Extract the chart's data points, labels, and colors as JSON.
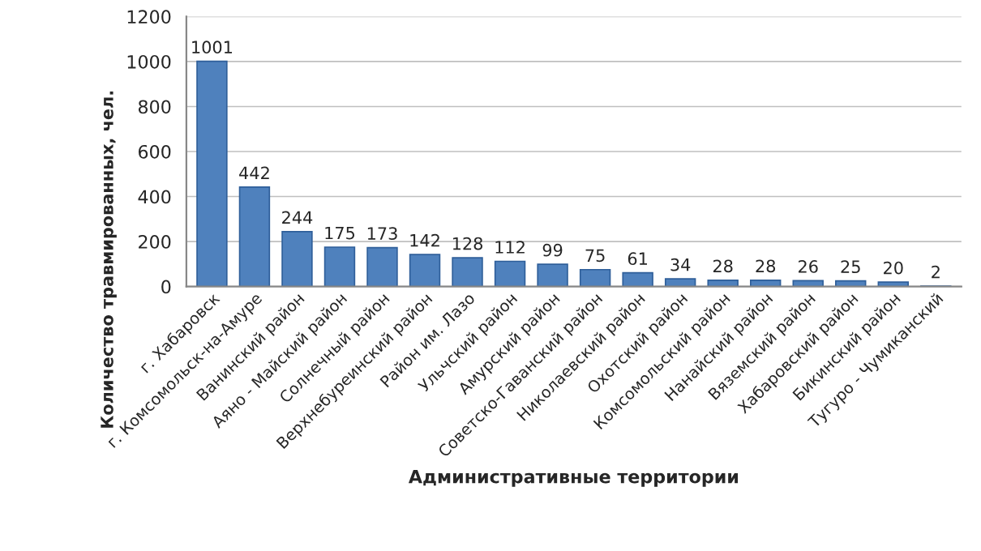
{
  "chart_data": {
    "type": "bar",
    "xlabel": "Административные территории",
    "ylabel": "Количество травмированных, чел.",
    "categories": [
      "г. Хабаровск",
      "г. Комсомольск-на-Амуре",
      "Ванинский район",
      "Аяно - Майский район",
      "Солнечный район",
      "Верхнебуреинский район",
      "Район им. Лазо",
      "Ульчский район",
      "Амурский район",
      "Советско-Гаванский район",
      "Николаевский район",
      "Охотский район",
      "Комсомольский район",
      "Нанайский район",
      "Вяземский район",
      "Хабаровский район",
      "Бикинский район",
      "Тугуро - Чумиканский"
    ],
    "values": [
      1001,
      442,
      244,
      175,
      173,
      142,
      128,
      112,
      99,
      75,
      61,
      34,
      28,
      28,
      26,
      25,
      20,
      2
    ],
    "color": "#4f81bd",
    "ylim": [
      0,
      1200
    ],
    "yticks": [
      0,
      200,
      400,
      600,
      800,
      1000,
      1200
    ],
    "grid": "y",
    "data_labels": true
  }
}
